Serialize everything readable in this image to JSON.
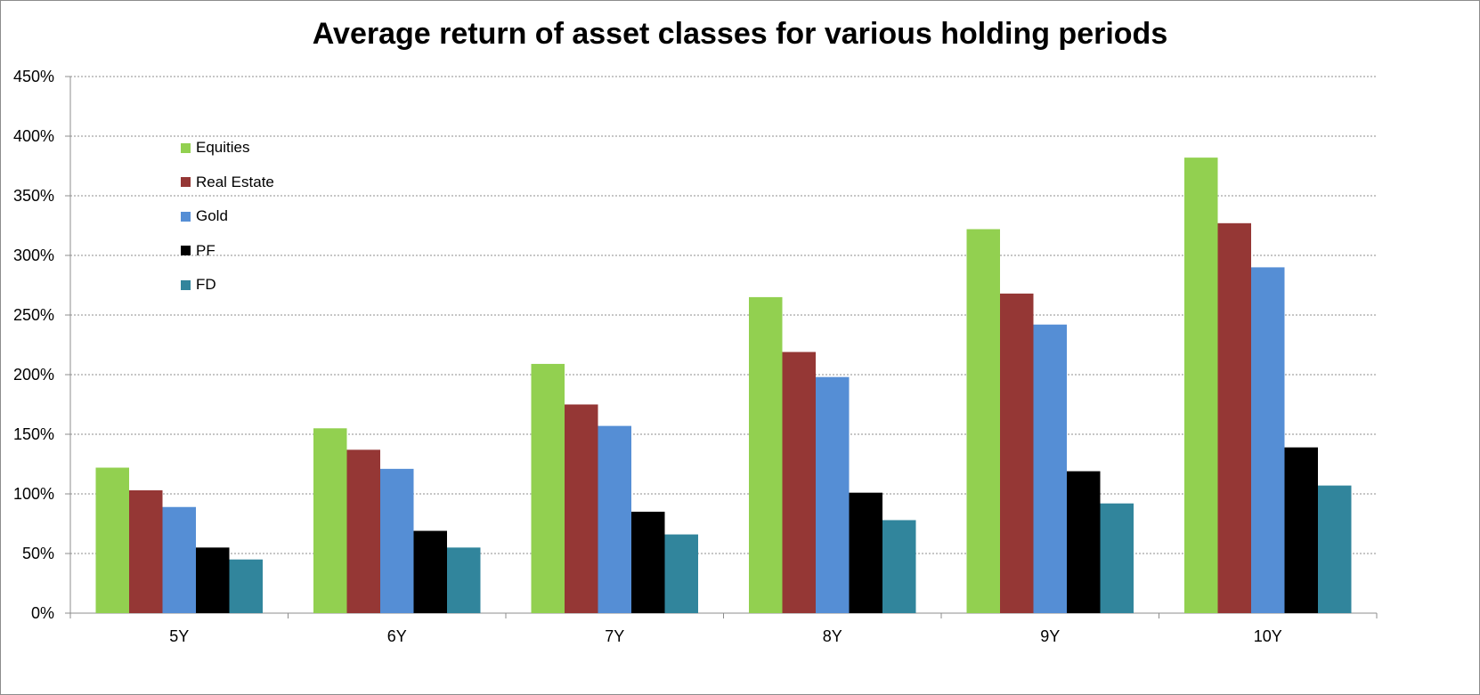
{
  "chart_data": {
    "type": "bar",
    "title": "Average return of asset classes for various holding periods",
    "xlabel": "",
    "ylabel": "",
    "categories": [
      "5Y",
      "6Y",
      "7Y",
      "8Y",
      "9Y",
      "10Y"
    ],
    "ylim": [
      0,
      450
    ],
    "yticks": [
      0,
      50,
      100,
      150,
      200,
      250,
      300,
      350,
      400,
      450
    ],
    "yticks_labels": [
      "0%",
      "50%",
      "100%",
      "150%",
      "200%",
      "250%",
      "300%",
      "350%",
      "400%",
      "450%"
    ],
    "grid": true,
    "legend_position": "top-left",
    "series": [
      {
        "name": "Equities",
        "color": "#92d050",
        "values": [
          122,
          155,
          209,
          265,
          322,
          382
        ]
      },
      {
        "name": "Real Estate",
        "color": "#953735",
        "values": [
          103,
          137,
          175,
          219,
          268,
          327
        ]
      },
      {
        "name": "Gold",
        "color": "#558ed5",
        "values": [
          89,
          121,
          157,
          198,
          242,
          290
        ]
      },
      {
        "name": "PF",
        "color": "#000000",
        "values": [
          55,
          69,
          85,
          101,
          119,
          139
        ]
      },
      {
        "name": "FD",
        "color": "#31859c",
        "values": [
          45,
          55,
          66,
          78,
          92,
          107
        ]
      }
    ]
  }
}
